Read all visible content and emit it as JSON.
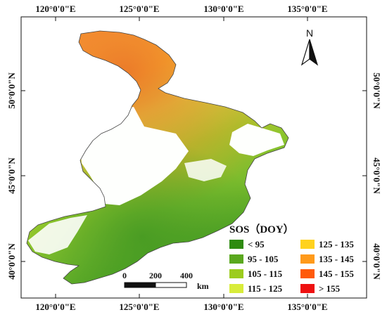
{
  "map": {
    "top_ticks": [
      "120°0'0\"E",
      "125°0'0\"E",
      "130°0'0\"E",
      "135°0'0\"E"
    ],
    "bottom_ticks": [
      "120°0'0\"E",
      "125°0'0\"E",
      "130°0'0\"E",
      "135°0'0\"E"
    ],
    "left_ticks": [
      "50°0'0\"N",
      "45°0'0\"N",
      "40°0'0\"N"
    ],
    "right_ticks": [
      "50°0'0\"N",
      "45°0'0\"N",
      "40°0'0\"N"
    ]
  },
  "north_arrow": {
    "label": "N"
  },
  "scale_bar": {
    "labels": [
      "0",
      "200",
      "400"
    ],
    "unit": "km"
  },
  "legend": {
    "title": "SOS（DOY）",
    "items": [
      {
        "label": "< 95",
        "color": "#2e8b10"
      },
      {
        "label": "95 - 105",
        "color": "#5aa81e"
      },
      {
        "label": "105 - 115",
        "color": "#9ccc1e"
      },
      {
        "label": "115 - 125",
        "color": "#d8ec3a"
      },
      {
        "label": "125 - 135",
        "color": "#ffd21e"
      },
      {
        "label": "135 - 145",
        "color": "#ff9a1a"
      },
      {
        "label": "145 - 155",
        "color": "#ff5a0a"
      },
      {
        "label": "> 155",
        "color": "#ee1010"
      }
    ]
  }
}
